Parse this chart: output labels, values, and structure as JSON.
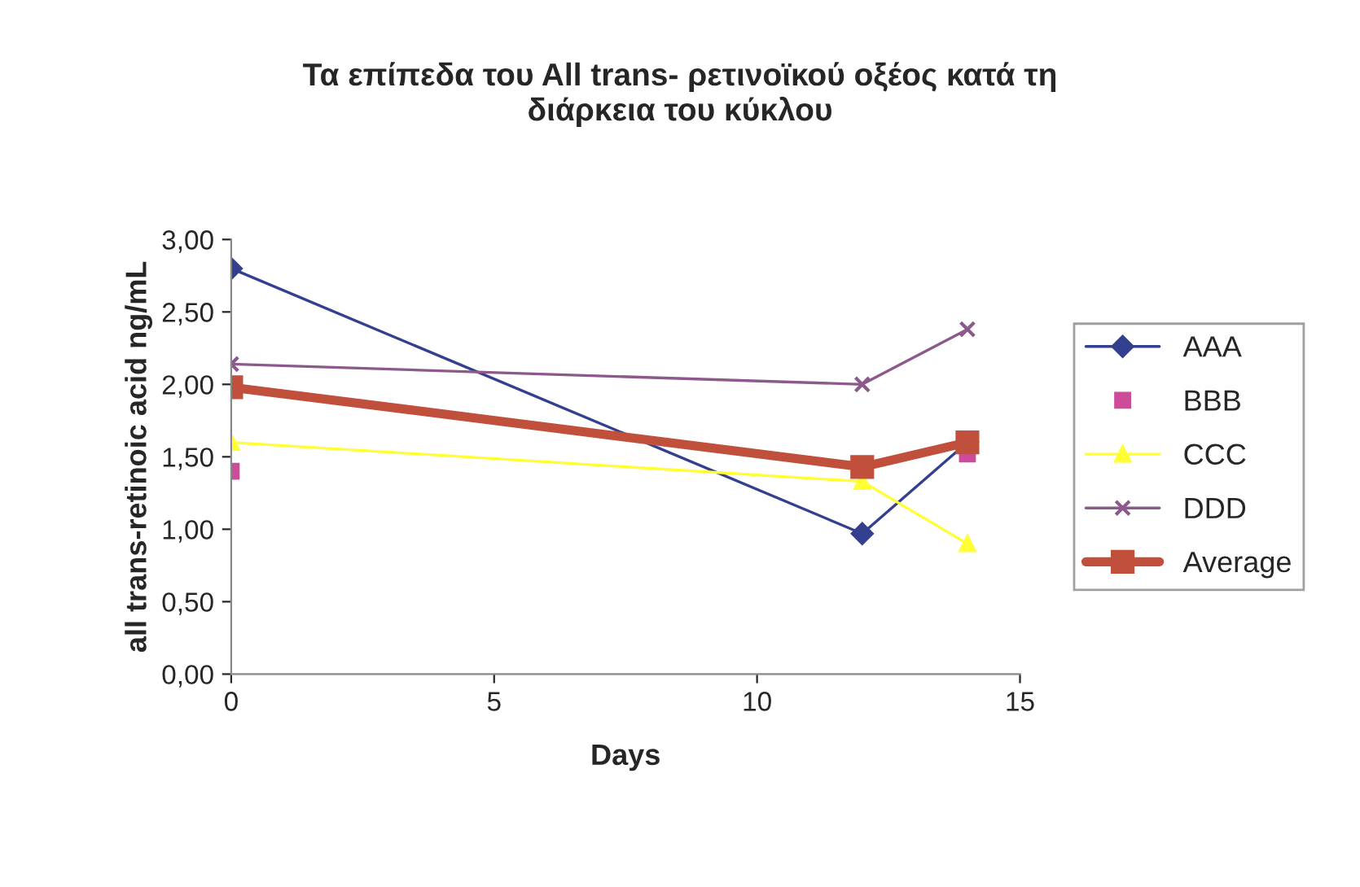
{
  "chart_data": {
    "type": "line",
    "title": "Τα επίπεδα του All trans- ρετινοϊκού οξέος κατά τη\nδιάρκεια του κύκλου",
    "xlabel": "Days",
    "ylabel": "all trans-retinoic acid ng/mL",
    "x": [
      0,
      12,
      14
    ],
    "series": [
      {
        "name": "AAA",
        "color": "#333f8f",
        "marker": "diamond",
        "values": [
          2.8,
          0.97,
          1.6
        ]
      },
      {
        "name": "BBB",
        "type": "scatter",
        "color": "#cc4c9a",
        "marker": "square",
        "values": [
          1.4,
          null,
          1.52
        ]
      },
      {
        "name": "CCC",
        "color": "#ffff33",
        "marker": "triangle",
        "values": [
          1.6,
          1.33,
          0.9
        ]
      },
      {
        "name": "DDD",
        "color": "#8b5a8b",
        "marker": "cross",
        "values": [
          2.14,
          2.0,
          2.38
        ]
      },
      {
        "name": "Average",
        "color": "#c0503c",
        "marker": "square",
        "values": [
          1.98,
          1.43,
          1.6
        ]
      }
    ],
    "xlim": [
      0,
      15
    ],
    "xticks": [
      0,
      5,
      10,
      15
    ],
    "ylim": [
      0,
      3
    ],
    "yticks": [
      {
        "value": 0,
        "label": "0,00"
      },
      {
        "value": 0.5,
        "label": "0,50"
      },
      {
        "value": 1,
        "label": "1,00"
      },
      {
        "value": 1.5,
        "label": "1,50"
      },
      {
        "value": 2,
        "label": "2,00"
      },
      {
        "value": 2.5,
        "label": "2,50"
      },
      {
        "value": 3,
        "label": "3,00"
      }
    ],
    "grid": false,
    "legend": "right"
  }
}
